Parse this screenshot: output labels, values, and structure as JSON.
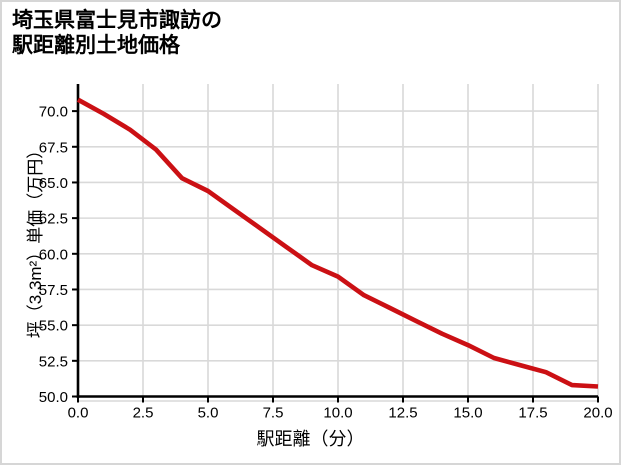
{
  "header": {
    "title_line1": "埼玉県富士見市諏訪の",
    "title_line2": "駅距離別土地価格"
  },
  "chart_data": {
    "type": "line",
    "title": "埼玉県富士見市諏訪の駅距離別土地価格",
    "xlabel": "駅距離（分）",
    "ylabel": "坪（3.3m²）単価（万円）",
    "series": [
      {
        "name": "土地価格",
        "x": [
          0,
          1,
          2,
          3,
          4,
          5,
          6,
          7,
          8,
          9,
          10,
          11,
          12,
          13,
          14,
          15,
          16,
          17,
          18,
          19,
          20
        ],
        "values": [
          70.8,
          69.8,
          68.7,
          67.3,
          65.3,
          64.4,
          63.1,
          61.8,
          60.5,
          59.2,
          58.4,
          57.1,
          56.2,
          55.3,
          54.4,
          53.6,
          52.7,
          52.2,
          51.7,
          50.8,
          50.7
        ]
      }
    ],
    "xlim": [
      0,
      20
    ],
    "ylim": [
      50,
      71.9
    ],
    "xticks": [
      0,
      2.5,
      5,
      7.5,
      10,
      12.5,
      15,
      17.5,
      20
    ],
    "xtick_labels": [
      "0.0",
      "2.5",
      "5.0",
      "7.5",
      "10.0",
      "12.5",
      "15.0",
      "17.5",
      "20.0"
    ],
    "yticks": [
      50,
      52.5,
      55,
      57.5,
      60,
      62.5,
      65,
      67.5,
      70
    ],
    "ytick_labels": [
      "50.0",
      "52.5",
      "55.0",
      "57.5",
      "60.0",
      "62.5",
      "65.0",
      "67.5",
      "70.0"
    ],
    "grid": true,
    "legend": "none",
    "colors": {
      "line": "#cb1014",
      "grid": "#d9d9d9",
      "axis": "#000000",
      "text": "#000000",
      "background": "#ffffff",
      "frame_border": "#d6d6d6"
    }
  }
}
